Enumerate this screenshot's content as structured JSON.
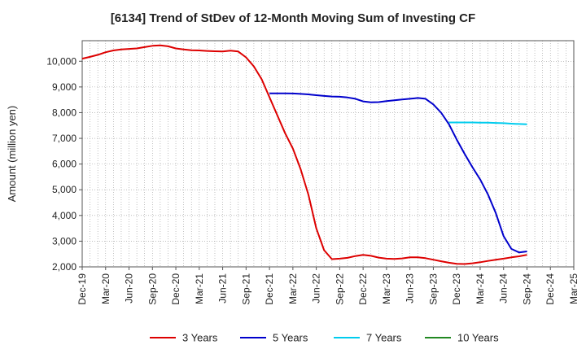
{
  "chart_data": {
    "type": "line",
    "title": "[6134]  Trend of StDev of 12-Month Moving Sum of Investing CF",
    "ylabel": "Amount (million yen)",
    "xlabel": "",
    "ylim": [
      2000,
      10800
    ],
    "yticks": [
      2000,
      3000,
      4000,
      5000,
      6000,
      7000,
      8000,
      9000,
      10000
    ],
    "ytick_labels": [
      "2,000",
      "3,000",
      "4,000",
      "5,000",
      "6,000",
      "7,000",
      "8,000",
      "9,000",
      "10,000"
    ],
    "x_tick_labels": [
      "Dec-19",
      "Mar-20",
      "Jun-20",
      "Sep-20",
      "Dec-20",
      "Mar-21",
      "Jun-21",
      "Sep-21",
      "Dec-21",
      "Mar-22",
      "Jun-22",
      "Sep-22",
      "Dec-22",
      "Mar-23",
      "Jun-23",
      "Sep-23",
      "Dec-23",
      "Mar-24",
      "Jun-24",
      "Sep-24",
      "Dec-24",
      "Mar-25"
    ],
    "x_start": "Dec-19",
    "x_end": "Mar-25",
    "grid": true,
    "legend_position": "bottom",
    "series": [
      {
        "name": "3 Years",
        "color": "#dd0000",
        "points": [
          [
            "Dec-19",
            10100
          ],
          [
            "Jan-20",
            10170
          ],
          [
            "Feb-20",
            10250
          ],
          [
            "Mar-20",
            10350
          ],
          [
            "Apr-20",
            10420
          ],
          [
            "May-20",
            10460
          ],
          [
            "Jun-20",
            10480
          ],
          [
            "Jul-20",
            10500
          ],
          [
            "Aug-20",
            10550
          ],
          [
            "Sep-20",
            10600
          ],
          [
            "Oct-20",
            10620
          ],
          [
            "Nov-20",
            10580
          ],
          [
            "Dec-20",
            10500
          ],
          [
            "Jan-21",
            10460
          ],
          [
            "Feb-21",
            10430
          ],
          [
            "Mar-21",
            10420
          ],
          [
            "Apr-21",
            10400
          ],
          [
            "May-21",
            10390
          ],
          [
            "Jun-21",
            10380
          ],
          [
            "Jul-21",
            10410
          ],
          [
            "Aug-21",
            10380
          ],
          [
            "Sep-21",
            10150
          ],
          [
            "Oct-21",
            9800
          ],
          [
            "Nov-21",
            9300
          ],
          [
            "Dec-21",
            8600
          ],
          [
            "Jan-22",
            7900
          ],
          [
            "Feb-22",
            7200
          ],
          [
            "Mar-22",
            6600
          ],
          [
            "Apr-22",
            5800
          ],
          [
            "May-22",
            4800
          ],
          [
            "Jun-22",
            3500
          ],
          [
            "Jul-22",
            2650
          ],
          [
            "Aug-22",
            2300
          ],
          [
            "Sep-22",
            2320
          ],
          [
            "Oct-22",
            2350
          ],
          [
            "Nov-22",
            2420
          ],
          [
            "Dec-22",
            2470
          ],
          [
            "Jan-23",
            2430
          ],
          [
            "Feb-23",
            2360
          ],
          [
            "Mar-23",
            2320
          ],
          [
            "Apr-23",
            2310
          ],
          [
            "May-23",
            2330
          ],
          [
            "Jun-23",
            2370
          ],
          [
            "Jul-23",
            2370
          ],
          [
            "Aug-23",
            2340
          ],
          [
            "Sep-23",
            2280
          ],
          [
            "Oct-23",
            2220
          ],
          [
            "Nov-23",
            2160
          ],
          [
            "Dec-23",
            2120
          ],
          [
            "Jan-24",
            2110
          ],
          [
            "Feb-24",
            2140
          ],
          [
            "Mar-24",
            2180
          ],
          [
            "Apr-24",
            2230
          ],
          [
            "May-24",
            2280
          ],
          [
            "Jun-24",
            2320
          ],
          [
            "Jul-24",
            2370
          ],
          [
            "Aug-24",
            2410
          ],
          [
            "Sep-24",
            2470
          ]
        ]
      },
      {
        "name": "5 Years",
        "color": "#0000cc",
        "points": [
          [
            "Dec-21",
            8750
          ],
          [
            "Jan-22",
            8750
          ],
          [
            "Feb-22",
            8750
          ],
          [
            "Mar-22",
            8745
          ],
          [
            "Apr-22",
            8730
          ],
          [
            "May-22",
            8710
          ],
          [
            "Jun-22",
            8680
          ],
          [
            "Jul-22",
            8650
          ],
          [
            "Aug-22",
            8630
          ],
          [
            "Sep-22",
            8620
          ],
          [
            "Oct-22",
            8590
          ],
          [
            "Nov-22",
            8540
          ],
          [
            "Dec-22",
            8440
          ],
          [
            "Jan-23",
            8400
          ],
          [
            "Feb-23",
            8410
          ],
          [
            "Mar-23",
            8450
          ],
          [
            "Apr-23",
            8480
          ],
          [
            "May-23",
            8510
          ],
          [
            "Jun-23",
            8540
          ],
          [
            "Jul-23",
            8570
          ],
          [
            "Aug-23",
            8540
          ],
          [
            "Sep-23",
            8320
          ],
          [
            "Oct-23",
            8000
          ],
          [
            "Nov-23",
            7550
          ],
          [
            "Dec-23",
            6950
          ],
          [
            "Jan-24",
            6400
          ],
          [
            "Feb-24",
            5880
          ],
          [
            "Mar-24",
            5400
          ],
          [
            "Apr-24",
            4820
          ],
          [
            "May-24",
            4100
          ],
          [
            "Jun-24",
            3200
          ],
          [
            "Jul-24",
            2700
          ],
          [
            "Aug-24",
            2560
          ],
          [
            "Sep-24",
            2600
          ]
        ]
      },
      {
        "name": "7 Years",
        "color": "#00ccee",
        "points": [
          [
            "Nov-23",
            7620
          ],
          [
            "Dec-23",
            7620
          ],
          [
            "Jan-24",
            7620
          ],
          [
            "Feb-24",
            7620
          ],
          [
            "Mar-24",
            7610
          ],
          [
            "Apr-24",
            7610
          ],
          [
            "May-24",
            7600
          ],
          [
            "Jun-24",
            7590
          ],
          [
            "Jul-24",
            7570
          ],
          [
            "Aug-24",
            7560
          ],
          [
            "Sep-24",
            7550
          ]
        ]
      },
      {
        "name": "10 Years",
        "color": "#228822",
        "points": []
      }
    ]
  }
}
